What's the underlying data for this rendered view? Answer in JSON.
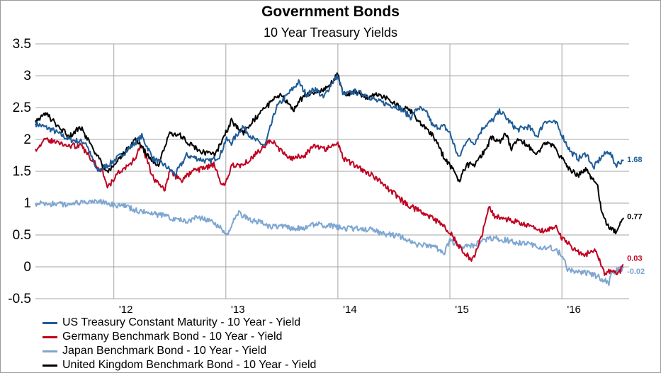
{
  "chart_data": {
    "type": "line",
    "title": "Government Bonds",
    "subtitle": "10 Year Treasury Yields",
    "xlabel": "",
    "ylabel": "",
    "xlim": [
      2011.3,
      2016.6
    ],
    "ylim": [
      -0.5,
      3.5
    ],
    "y_ticks": [
      -0.5,
      0,
      0.5,
      1,
      1.5,
      2,
      2.5,
      3,
      3.5
    ],
    "y_tick_labels": [
      "-0.5",
      "0",
      "0.5",
      "1",
      "1.5",
      "2",
      "2.5",
      "3",
      "3.5"
    ],
    "x_ticks": [
      2012,
      2013,
      2014,
      2015,
      2016
    ],
    "x_tick_labels": [
      "'12",
      "'13",
      "'14",
      "'15",
      "'16"
    ],
    "grid": true,
    "legend_position": "bottom-left",
    "series": [
      {
        "name": "US Treasury Constant Maturity - 10 Year - Yield",
        "color": "#1f5c99",
        "end_label": "1.68",
        "points": [
          [
            2011.3,
            2.25
          ],
          [
            2011.45,
            2.15
          ],
          [
            2011.6,
            2.0
          ],
          [
            2011.75,
            1.95
          ],
          [
            2011.85,
            1.5
          ],
          [
            2011.95,
            1.6
          ],
          [
            2012.1,
            1.8
          ],
          [
            2012.25,
            2.05
          ],
          [
            2012.35,
            1.7
          ],
          [
            2012.45,
            1.6
          ],
          [
            2012.55,
            1.45
          ],
          [
            2012.65,
            1.75
          ],
          [
            2012.75,
            1.7
          ],
          [
            2012.85,
            1.65
          ],
          [
            2012.95,
            1.75
          ],
          [
            2013.0,
            2.0
          ],
          [
            2013.05,
            1.95
          ],
          [
            2013.15,
            2.2
          ],
          [
            2013.25,
            2.0
          ],
          [
            2013.35,
            1.9
          ],
          [
            2013.45,
            2.5
          ],
          [
            2013.55,
            2.7
          ],
          [
            2013.65,
            2.9
          ],
          [
            2013.72,
            2.7
          ],
          [
            2013.8,
            2.8
          ],
          [
            2013.87,
            2.65
          ],
          [
            2013.95,
            2.9
          ],
          [
            2014.0,
            2.99
          ],
          [
            2014.05,
            2.7
          ],
          [
            2014.15,
            2.75
          ],
          [
            2014.25,
            2.7
          ],
          [
            2014.35,
            2.6
          ],
          [
            2014.45,
            2.55
          ],
          [
            2014.55,
            2.5
          ],
          [
            2014.65,
            2.35
          ],
          [
            2014.72,
            2.5
          ],
          [
            2014.8,
            2.4
          ],
          [
            2014.85,
            2.2
          ],
          [
            2014.95,
            2.2
          ],
          [
            2015.0,
            2.1
          ],
          [
            2015.08,
            1.7
          ],
          [
            2015.15,
            2.0
          ],
          [
            2015.22,
            1.95
          ],
          [
            2015.3,
            2.2
          ],
          [
            2015.38,
            2.3
          ],
          [
            2015.45,
            2.45
          ],
          [
            2015.52,
            2.3
          ],
          [
            2015.6,
            2.15
          ],
          [
            2015.7,
            2.2
          ],
          [
            2015.78,
            2.05
          ],
          [
            2015.85,
            2.3
          ],
          [
            2015.95,
            2.25
          ],
          [
            2016.02,
            2.0
          ],
          [
            2016.08,
            1.8
          ],
          [
            2016.15,
            1.7
          ],
          [
            2016.22,
            1.78
          ],
          [
            2016.28,
            1.55
          ],
          [
            2016.35,
            1.72
          ],
          [
            2016.42,
            1.82
          ],
          [
            2016.48,
            1.6
          ],
          [
            2016.55,
            1.68
          ]
        ]
      },
      {
        "name": "Germany Benchmark Bond - 10 Year - Yield",
        "color": "#c00020",
        "end_label": "0.03",
        "points": [
          [
            2011.3,
            1.85
          ],
          [
            2011.4,
            2.0
          ],
          [
            2011.5,
            1.95
          ],
          [
            2011.6,
            1.9
          ],
          [
            2011.7,
            1.9
          ],
          [
            2011.8,
            1.7
          ],
          [
            2011.9,
            1.5
          ],
          [
            2011.95,
            1.25
          ],
          [
            2012.05,
            1.5
          ],
          [
            2012.15,
            1.6
          ],
          [
            2012.25,
            1.9
          ],
          [
            2012.35,
            1.4
          ],
          [
            2012.45,
            1.2
          ],
          [
            2012.5,
            1.5
          ],
          [
            2012.6,
            1.35
          ],
          [
            2012.7,
            1.5
          ],
          [
            2012.8,
            1.55
          ],
          [
            2012.9,
            1.6
          ],
          [
            2012.95,
            1.3
          ],
          [
            2013.0,
            1.3
          ],
          [
            2013.05,
            1.6
          ],
          [
            2013.15,
            1.6
          ],
          [
            2013.25,
            1.75
          ],
          [
            2013.35,
            1.9
          ],
          [
            2013.4,
            2.0
          ],
          [
            2013.5,
            1.8
          ],
          [
            2013.6,
            1.7
          ],
          [
            2013.7,
            1.75
          ],
          [
            2013.8,
            1.9
          ],
          [
            2013.9,
            1.85
          ],
          [
            2014.0,
            1.95
          ],
          [
            2014.05,
            1.7
          ],
          [
            2014.2,
            1.55
          ],
          [
            2014.3,
            1.45
          ],
          [
            2014.4,
            1.3
          ],
          [
            2014.5,
            1.15
          ],
          [
            2014.6,
            1.0
          ],
          [
            2014.7,
            0.9
          ],
          [
            2014.8,
            0.8
          ],
          [
            2014.9,
            0.7
          ],
          [
            2015.0,
            0.55
          ],
          [
            2015.05,
            0.4
          ],
          [
            2015.12,
            0.25
          ],
          [
            2015.2,
            0.1
          ],
          [
            2015.25,
            0.3
          ],
          [
            2015.3,
            0.6
          ],
          [
            2015.35,
            0.95
          ],
          [
            2015.4,
            0.8
          ],
          [
            2015.5,
            0.75
          ],
          [
            2015.6,
            0.7
          ],
          [
            2015.7,
            0.65
          ],
          [
            2015.8,
            0.55
          ],
          [
            2015.9,
            0.6
          ],
          [
            2015.95,
            0.65
          ],
          [
            2016.0,
            0.45
          ],
          [
            2016.1,
            0.3
          ],
          [
            2016.2,
            0.18
          ],
          [
            2016.3,
            0.28
          ],
          [
            2016.38,
            -0.1
          ],
          [
            2016.45,
            -0.05
          ],
          [
            2016.5,
            -0.12
          ],
          [
            2016.55,
            0.03
          ]
        ]
      },
      {
        "name": "Japan Benchmark Bond - 10 Year - Yield",
        "color": "#7ea6d2",
        "end_label": "-0.02",
        "points": [
          [
            2011.3,
            1.0
          ],
          [
            2011.5,
            0.98
          ],
          [
            2011.7,
            1.0
          ],
          [
            2011.9,
            1.02
          ],
          [
            2012.0,
            0.98
          ],
          [
            2012.1,
            0.95
          ],
          [
            2012.2,
            0.88
          ],
          [
            2012.3,
            0.85
          ],
          [
            2012.45,
            0.8
          ],
          [
            2012.55,
            0.75
          ],
          [
            2012.65,
            0.72
          ],
          [
            2012.75,
            0.78
          ],
          [
            2012.85,
            0.72
          ],
          [
            2012.95,
            0.62
          ],
          [
            2013.02,
            0.5
          ],
          [
            2013.1,
            0.85
          ],
          [
            2013.2,
            0.75
          ],
          [
            2013.3,
            0.7
          ],
          [
            2013.4,
            0.62
          ],
          [
            2013.5,
            0.65
          ],
          [
            2013.6,
            0.6
          ],
          [
            2013.7,
            0.62
          ],
          [
            2013.8,
            0.68
          ],
          [
            2013.9,
            0.65
          ],
          [
            2014.0,
            0.62
          ],
          [
            2014.1,
            0.6
          ],
          [
            2014.2,
            0.6
          ],
          [
            2014.3,
            0.58
          ],
          [
            2014.4,
            0.52
          ],
          [
            2014.5,
            0.5
          ],
          [
            2014.6,
            0.45
          ],
          [
            2014.7,
            0.33
          ],
          [
            2014.8,
            0.35
          ],
          [
            2014.9,
            0.28
          ],
          [
            2014.95,
            0.22
          ],
          [
            2015.0,
            0.4
          ],
          [
            2015.1,
            0.3
          ],
          [
            2015.2,
            0.33
          ],
          [
            2015.3,
            0.42
          ],
          [
            2015.4,
            0.45
          ],
          [
            2015.5,
            0.42
          ],
          [
            2015.6,
            0.38
          ],
          [
            2015.7,
            0.35
          ],
          [
            2015.8,
            0.32
          ],
          [
            2015.9,
            0.3
          ],
          [
            2016.0,
            0.2
          ],
          [
            2016.05,
            -0.05
          ],
          [
            2016.15,
            -0.08
          ],
          [
            2016.25,
            -0.1
          ],
          [
            2016.35,
            -0.18
          ],
          [
            2016.42,
            -0.25
          ],
          [
            2016.45,
            -0.08
          ],
          [
            2016.55,
            -0.02
          ]
        ]
      },
      {
        "name": "United Kingdom Benchmark Bond - 10 Year - Yield",
        "color": "#000000",
        "end_label": "0.77",
        "points": [
          [
            2011.3,
            2.3
          ],
          [
            2011.4,
            2.4
          ],
          [
            2011.5,
            2.2
          ],
          [
            2011.6,
            2.05
          ],
          [
            2011.7,
            2.2
          ],
          [
            2011.8,
            1.9
          ],
          [
            2011.9,
            1.6
          ],
          [
            2011.95,
            1.5
          ],
          [
            2012.1,
            1.8
          ],
          [
            2012.2,
            2.0
          ],
          [
            2012.3,
            1.75
          ],
          [
            2012.4,
            1.6
          ],
          [
            2012.5,
            2.1
          ],
          [
            2012.6,
            2.05
          ],
          [
            2012.7,
            1.9
          ],
          [
            2012.8,
            1.8
          ],
          [
            2012.9,
            1.75
          ],
          [
            2013.0,
            2.1
          ],
          [
            2013.05,
            2.3
          ],
          [
            2013.15,
            2.1
          ],
          [
            2013.25,
            2.3
          ],
          [
            2013.35,
            2.5
          ],
          [
            2013.45,
            2.65
          ],
          [
            2013.5,
            2.7
          ],
          [
            2013.6,
            2.45
          ],
          [
            2013.7,
            2.7
          ],
          [
            2013.8,
            2.75
          ],
          [
            2013.9,
            2.8
          ],
          [
            2013.95,
            2.9
          ],
          [
            2014.0,
            3.04
          ],
          [
            2014.05,
            2.7
          ],
          [
            2014.15,
            2.75
          ],
          [
            2014.25,
            2.65
          ],
          [
            2014.35,
            2.7
          ],
          [
            2014.45,
            2.65
          ],
          [
            2014.55,
            2.5
          ],
          [
            2014.65,
            2.45
          ],
          [
            2014.72,
            2.3
          ],
          [
            2014.8,
            2.15
          ],
          [
            2014.85,
            2.05
          ],
          [
            2014.9,
            1.9
          ],
          [
            2014.95,
            1.7
          ],
          [
            2015.0,
            1.6
          ],
          [
            2015.08,
            1.35
          ],
          [
            2015.15,
            1.6
          ],
          [
            2015.22,
            1.6
          ],
          [
            2015.3,
            1.8
          ],
          [
            2015.38,
            2.05
          ],
          [
            2015.45,
            1.95
          ],
          [
            2015.5,
            2.1
          ],
          [
            2015.55,
            1.85
          ],
          [
            2015.62,
            2.0
          ],
          [
            2015.7,
            1.9
          ],
          [
            2015.78,
            1.75
          ],
          [
            2015.85,
            1.95
          ],
          [
            2015.92,
            1.9
          ],
          [
            2016.0,
            1.7
          ],
          [
            2016.08,
            1.5
          ],
          [
            2016.15,
            1.45
          ],
          [
            2016.22,
            1.55
          ],
          [
            2016.28,
            1.35
          ],
          [
            2016.32,
            1.25
          ],
          [
            2016.35,
            0.9
          ],
          [
            2016.42,
            0.6
          ],
          [
            2016.48,
            0.55
          ],
          [
            2016.5,
            0.58
          ],
          [
            2016.53,
            0.72
          ],
          [
            2016.55,
            0.77
          ]
        ]
      }
    ]
  }
}
